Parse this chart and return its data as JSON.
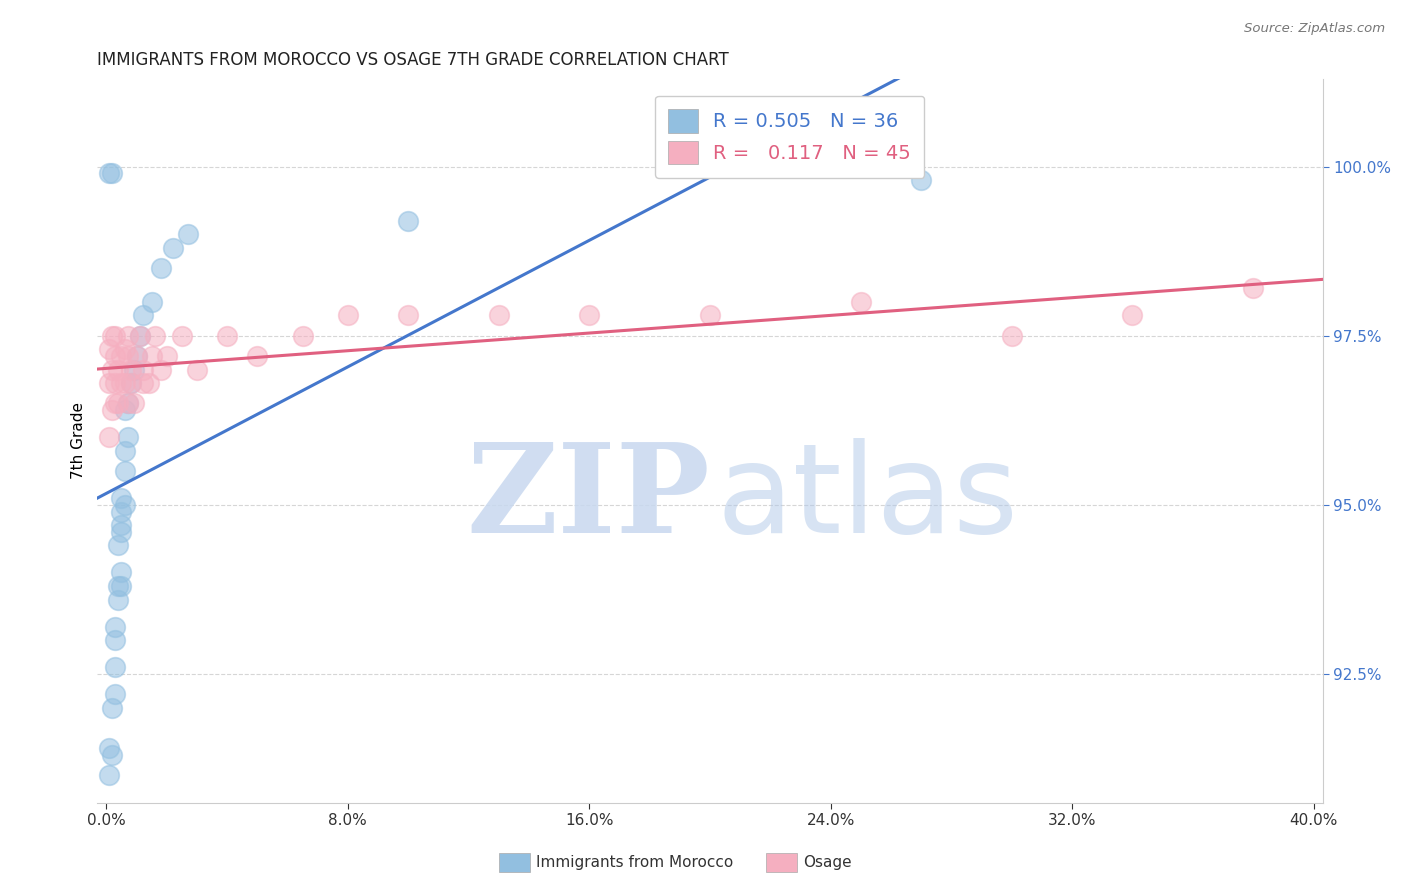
{
  "title": "IMMIGRANTS FROM MOROCCO VS OSAGE 7TH GRADE CORRELATION CHART",
  "source": "Source: ZipAtlas.com",
  "xlabel_blue": "Immigrants from Morocco",
  "xlabel_pink": "Osage",
  "ylabel": "7th Grade",
  "R_blue": 0.505,
  "N_blue": 36,
  "R_pink": 0.117,
  "N_pink": 45,
  "xlim": [
    -0.003,
    0.403
  ],
  "ylim": [
    0.906,
    1.013
  ],
  "yticks": [
    0.925,
    0.95,
    0.975,
    1.0
  ],
  "ytick_labels": [
    "92.5%",
    "95.0%",
    "97.5%",
    "100.0%"
  ],
  "xticks": [
    0.0,
    0.08,
    0.16,
    0.24,
    0.32,
    0.4
  ],
  "xtick_labels": [
    "0.0%",
    "8.0%",
    "16.0%",
    "24.0%",
    "32.0%",
    "40.0%"
  ],
  "blue_color": "#92bfe0",
  "pink_color": "#f5afc0",
  "blue_line_color": "#4477cc",
  "pink_line_color": "#e06080",
  "blue_x": [
    0.001,
    0.001,
    0.002,
    0.002,
    0.003,
    0.003,
    0.003,
    0.003,
    0.004,
    0.004,
    0.004,
    0.005,
    0.005,
    0.005,
    0.005,
    0.005,
    0.005,
    0.006,
    0.006,
    0.006,
    0.006,
    0.007,
    0.007,
    0.008,
    0.009,
    0.01,
    0.011,
    0.012,
    0.015,
    0.018,
    0.022,
    0.027,
    0.1,
    0.27,
    0.001,
    0.002
  ],
  "blue_y": [
    0.91,
    0.914,
    0.92,
    0.913,
    0.922,
    0.926,
    0.93,
    0.932,
    0.936,
    0.938,
    0.944,
    0.938,
    0.94,
    0.946,
    0.947,
    0.949,
    0.951,
    0.95,
    0.955,
    0.958,
    0.964,
    0.96,
    0.965,
    0.968,
    0.97,
    0.972,
    0.975,
    0.978,
    0.98,
    0.985,
    0.988,
    0.99,
    0.992,
    0.998,
    0.999,
    0.999
  ],
  "pink_x": [
    0.001,
    0.001,
    0.002,
    0.002,
    0.002,
    0.003,
    0.003,
    0.003,
    0.004,
    0.004,
    0.005,
    0.005,
    0.006,
    0.006,
    0.007,
    0.007,
    0.008,
    0.008,
    0.009,
    0.01,
    0.011,
    0.012,
    0.014,
    0.015,
    0.016,
    0.018,
    0.02,
    0.025,
    0.03,
    0.04,
    0.05,
    0.065,
    0.08,
    0.1,
    0.13,
    0.16,
    0.2,
    0.25,
    0.3,
    0.34,
    0.38,
    0.001,
    0.003,
    0.007,
    0.012
  ],
  "pink_y": [
    0.973,
    0.968,
    0.975,
    0.97,
    0.964,
    0.972,
    0.968,
    0.975,
    0.97,
    0.965,
    0.972,
    0.968,
    0.973,
    0.968,
    0.972,
    0.975,
    0.97,
    0.968,
    0.965,
    0.972,
    0.975,
    0.97,
    0.968,
    0.972,
    0.975,
    0.97,
    0.972,
    0.975,
    0.97,
    0.975,
    0.972,
    0.975,
    0.978,
    0.978,
    0.978,
    0.978,
    0.978,
    0.98,
    0.975,
    0.978,
    0.982,
    0.96,
    0.965,
    0.965,
    0.968
  ]
}
